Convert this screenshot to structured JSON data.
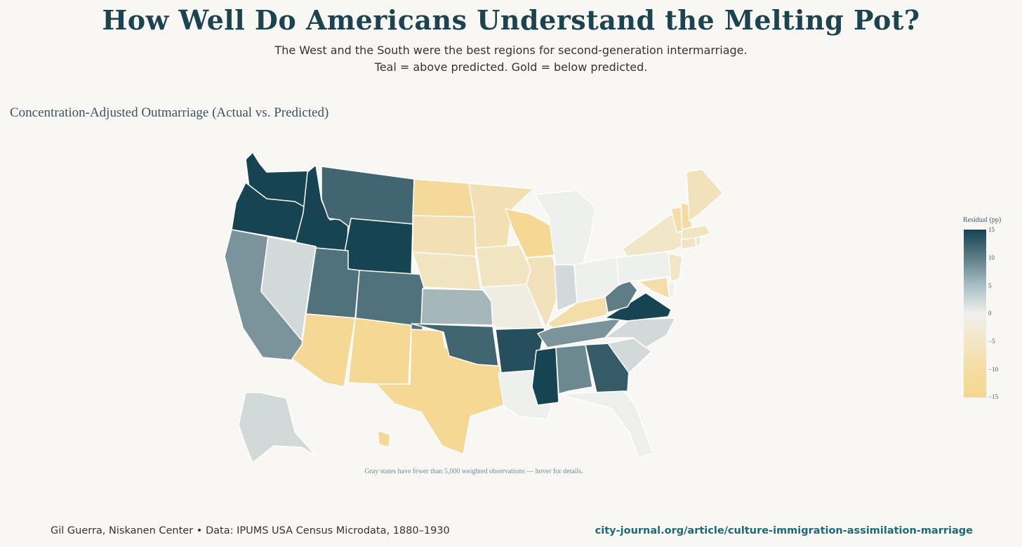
{
  "header": {
    "title": "How Well Do Americans Understand the Melting Pot?",
    "subtitle_line1": "The West and the South were the best regions for second-generation intermarriage.",
    "subtitle_line2": "Teal = above predicted. Gold = below predicted."
  },
  "map": {
    "title": "Concentration-Adjusted Outmarriage (Actual vs. Predicted)",
    "note": "Gray states have fewer than 5,000 weighted observations — hover for details.",
    "colorbar": {
      "title": "Residual (pp)",
      "ticks": [
        "15",
        "10",
        "5",
        "0",
        "−5",
        "−10",
        "−15"
      ],
      "range": [
        -15,
        15
      ],
      "colors": {
        "high": "#174452",
        "mid": "#eef0ee",
        "low": "#f5d68e"
      }
    },
    "states": [
      {
        "name": "Washington",
        "abbr": "WA",
        "residual": 15
      },
      {
        "name": "Oregon",
        "abbr": "OR",
        "residual": 15
      },
      {
        "name": "Idaho",
        "abbr": "ID",
        "residual": 15
      },
      {
        "name": "Montana",
        "abbr": "MT",
        "residual": 12
      },
      {
        "name": "Wyoming",
        "abbr": "WY",
        "residual": 15
      },
      {
        "name": "California",
        "abbr": "CA",
        "residual": 8
      },
      {
        "name": "Nevada",
        "abbr": "NV",
        "residual": 2
      },
      {
        "name": "Utah",
        "abbr": "UT",
        "residual": 11
      },
      {
        "name": "Colorado",
        "abbr": "CO",
        "residual": 11
      },
      {
        "name": "Arizona",
        "abbr": "AZ",
        "residual": -14
      },
      {
        "name": "New Mexico",
        "abbr": "NM",
        "residual": -14
      },
      {
        "name": "Texas",
        "abbr": "TX",
        "residual": -14
      },
      {
        "name": "North Dakota",
        "abbr": "ND",
        "residual": -13
      },
      {
        "name": "South Dakota",
        "abbr": "SD",
        "residual": -9
      },
      {
        "name": "Nebraska",
        "abbr": "NE",
        "residual": -7
      },
      {
        "name": "Kansas",
        "abbr": "KS",
        "residual": 5
      },
      {
        "name": "Oklahoma",
        "abbr": "OK",
        "residual": 12
      },
      {
        "name": "Minnesota",
        "abbr": "MN",
        "residual": -9
      },
      {
        "name": "Iowa",
        "abbr": "IA",
        "residual": -7
      },
      {
        "name": "Missouri",
        "abbr": "MO",
        "residual": -2
      },
      {
        "name": "Arkansas",
        "abbr": "AR",
        "residual": 14
      },
      {
        "name": "Louisiana",
        "abbr": "LA",
        "residual": 0
      },
      {
        "name": "Wisconsin",
        "abbr": "WI",
        "residual": -14
      },
      {
        "name": "Illinois",
        "abbr": "IL",
        "residual": -8
      },
      {
        "name": "Michigan",
        "abbr": "MI",
        "residual": 0
      },
      {
        "name": "Indiana",
        "abbr": "IN",
        "residual": 2
      },
      {
        "name": "Ohio",
        "abbr": "OH",
        "residual": 0
      },
      {
        "name": "Kentucky",
        "abbr": "KY",
        "residual": -11
      },
      {
        "name": "Tennessee",
        "abbr": "TN",
        "residual": 8
      },
      {
        "name": "Mississippi",
        "abbr": "MS",
        "residual": 15
      },
      {
        "name": "Alabama",
        "abbr": "AL",
        "residual": 9
      },
      {
        "name": "Georgia",
        "abbr": "GA",
        "residual": 13
      },
      {
        "name": "Florida",
        "abbr": "FL",
        "residual": 0
      },
      {
        "name": "South Carolina",
        "abbr": "SC",
        "residual": 2
      },
      {
        "name": "North Carolina",
        "abbr": "NC",
        "residual": 2
      },
      {
        "name": "Virginia",
        "abbr": "VA",
        "residual": 15
      },
      {
        "name": "West Virginia",
        "abbr": "WV",
        "residual": 10
      },
      {
        "name": "Pennsylvania",
        "abbr": "PA",
        "residual": 0
      },
      {
        "name": "New York",
        "abbr": "NY",
        "residual": -6
      },
      {
        "name": "New Jersey",
        "abbr": "NJ",
        "residual": -6
      },
      {
        "name": "Delaware",
        "abbr": "DE",
        "residual": 0
      },
      {
        "name": "Maryland",
        "abbr": "MD",
        "residual": -11
      },
      {
        "name": "Connecticut",
        "abbr": "CT",
        "residual": -7
      },
      {
        "name": "Rhode Island",
        "abbr": "RI",
        "residual": -5
      },
      {
        "name": "Massachusetts",
        "abbr": "MA",
        "residual": -7
      },
      {
        "name": "Vermont",
        "abbr": "VT",
        "residual": -11
      },
      {
        "name": "New Hampshire",
        "abbr": "NH",
        "residual": -12
      },
      {
        "name": "Maine",
        "abbr": "ME",
        "residual": -8
      },
      {
        "name": "Alaska",
        "abbr": "AK",
        "residual": 2
      },
      {
        "name": "Hawaii",
        "abbr": "HI",
        "residual": -14
      }
    ]
  },
  "footer": {
    "credit": "Gil Guerra, Niskanen Center  •  Data: IPUMS USA Census Microdata, 1880–1930",
    "url": "city-journal.org/article/culture-immigration-assimilation-marriage"
  }
}
